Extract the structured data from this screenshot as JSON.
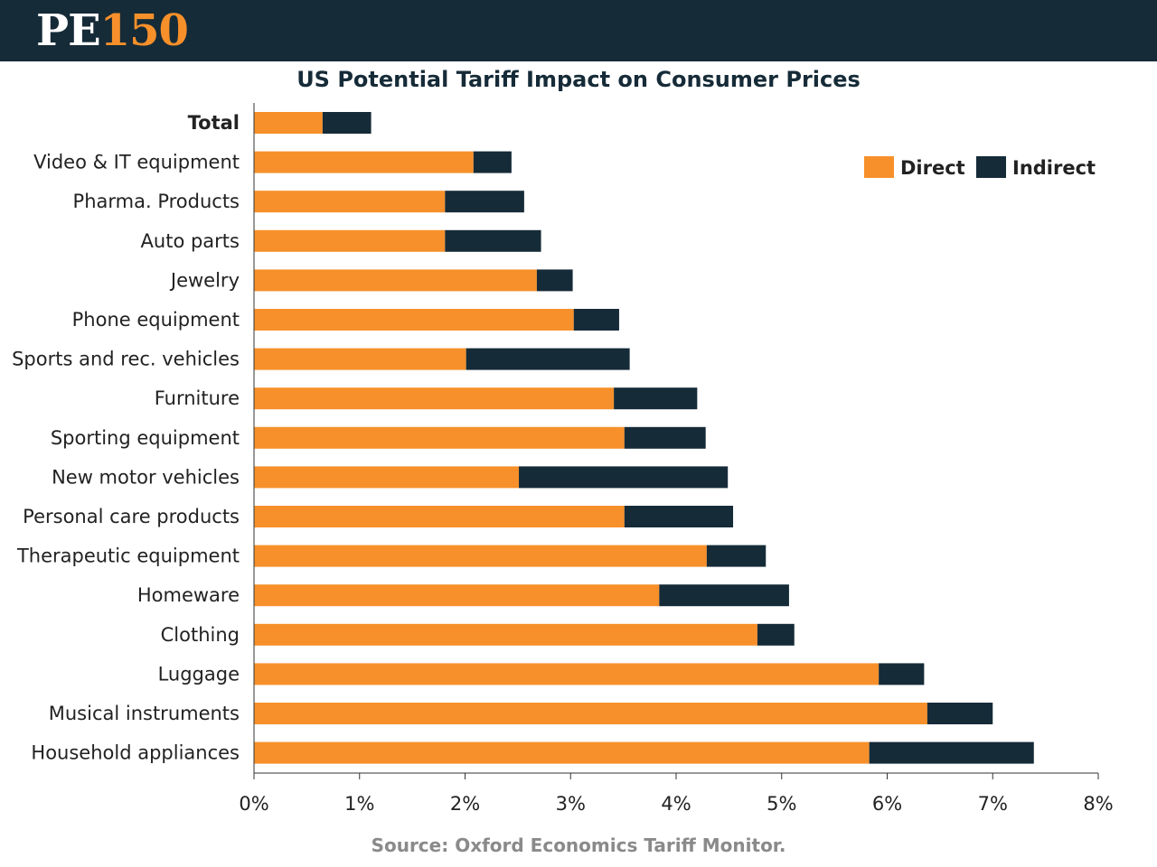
{
  "header": {
    "logo_text_main": "PE",
    "logo_text_accent": "150"
  },
  "colors": {
    "header_bg": "#162b38",
    "direct": "#f7902a",
    "indirect": "#162b38",
    "axis": "#333333",
    "text": "#222222"
  },
  "source_text": "Source: Oxford Economics Tariff Monitor.",
  "chart_data": {
    "type": "bar",
    "orientation": "horizontal",
    "stacked": true,
    "title": "US Potential Tariff Impact on Consumer Prices",
    "xlabel": "",
    "ylabel": "",
    "xlim": [
      0,
      8
    ],
    "x_ticks": [
      "0%",
      "1%",
      "2%",
      "3%",
      "4%",
      "5%",
      "6%",
      "7%",
      "8%"
    ],
    "grid": false,
    "legend_position": "top-right",
    "categories": [
      "Total",
      "Video & IT equipment",
      "Pharma. Products",
      "Auto parts",
      "Jewelry",
      "Phone equipment",
      "Sports and rec. vehicles",
      "Furniture",
      "Sporting equipment",
      "New motor vehicles",
      "Personal care products",
      "Therapeutic equipment",
      "Homeware",
      "Clothing",
      "Luggage",
      "Musical instruments",
      "Household appliances"
    ],
    "bold_categories": [
      "Total"
    ],
    "series": [
      {
        "name": "Direct",
        "color": "#f7902a",
        "values": [
          0.65,
          2.08,
          1.81,
          1.81,
          2.68,
          3.03,
          2.01,
          3.41,
          3.51,
          2.51,
          3.51,
          4.29,
          3.84,
          4.77,
          5.92,
          6.38,
          5.83
        ]
      },
      {
        "name": "Indirect",
        "color": "#162b38",
        "values": [
          0.46,
          0.36,
          0.75,
          0.91,
          0.34,
          0.43,
          1.55,
          0.79,
          0.77,
          1.98,
          1.03,
          0.56,
          1.23,
          0.35,
          0.43,
          0.62,
          1.56
        ]
      }
    ]
  }
}
